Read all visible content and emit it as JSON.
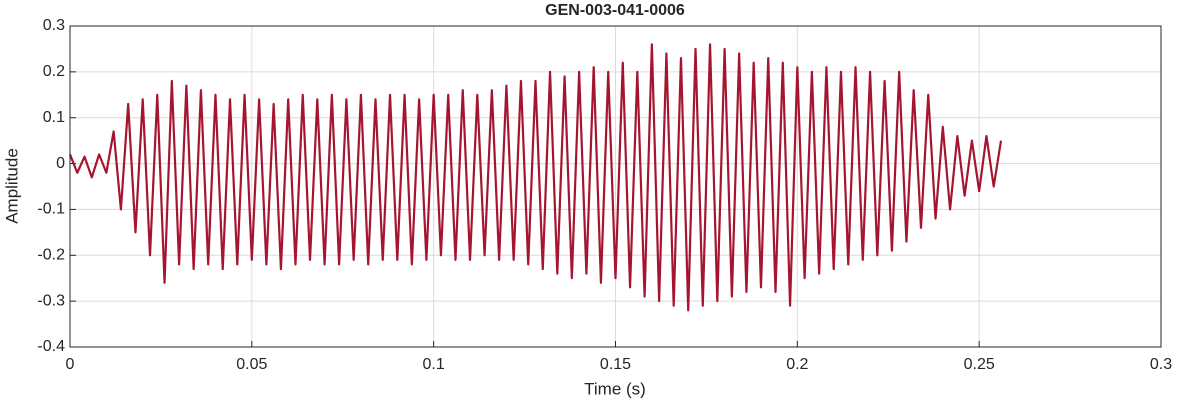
{
  "chart_data": {
    "type": "line",
    "title": "GEN-003-041-0006",
    "xlabel": "Time (s)",
    "ylabel": "Amplitude",
    "x": [
      0,
      0.002,
      0.004,
      0.006,
      0.008,
      0.01,
      0.012,
      0.014,
      0.016,
      0.018,
      0.02,
      0.022,
      0.024,
      0.026,
      0.028,
      0.03,
      0.032,
      0.034,
      0.036,
      0.038,
      0.04,
      0.042,
      0.044,
      0.046,
      0.048,
      0.05,
      0.052,
      0.054,
      0.056,
      0.058,
      0.06,
      0.062,
      0.064,
      0.066,
      0.068,
      0.07,
      0.072,
      0.074,
      0.076,
      0.078,
      0.08,
      0.082,
      0.084,
      0.086,
      0.088,
      0.09,
      0.092,
      0.094,
      0.096,
      0.098,
      0.1,
      0.102,
      0.104,
      0.106,
      0.108,
      0.11,
      0.112,
      0.114,
      0.116,
      0.118,
      0.12,
      0.122,
      0.124,
      0.126,
      0.128,
      0.13,
      0.132,
      0.134,
      0.136,
      0.138,
      0.14,
      0.142,
      0.144,
      0.146,
      0.148,
      0.15,
      0.152,
      0.154,
      0.156,
      0.158,
      0.16,
      0.162,
      0.164,
      0.166,
      0.168,
      0.17,
      0.172,
      0.174,
      0.176,
      0.178,
      0.18,
      0.182,
      0.184,
      0.186,
      0.188,
      0.19,
      0.192,
      0.194,
      0.196,
      0.198,
      0.2,
      0.202,
      0.204,
      0.206,
      0.208,
      0.21,
      0.212,
      0.214,
      0.216,
      0.218,
      0.22,
      0.222,
      0.224,
      0.226,
      0.228,
      0.23,
      0.232,
      0.234,
      0.236,
      0.238,
      0.24,
      0.242,
      0.244,
      0.246,
      0.248,
      0.25,
      0.252,
      0.254,
      0.256
    ],
    "series": [
      {
        "name": "Amplitude",
        "color": "#a5152f",
        "values": [
          0.02,
          -0.02,
          0.015,
          -0.03,
          0.02,
          -0.02,
          0.07,
          -0.1,
          0.13,
          -0.15,
          0.14,
          -0.2,
          0.15,
          -0.26,
          0.18,
          -0.22,
          0.17,
          -0.23,
          0.16,
          -0.22,
          0.15,
          -0.23,
          0.14,
          -0.22,
          0.15,
          -0.21,
          0.14,
          -0.22,
          0.13,
          -0.23,
          0.14,
          -0.22,
          0.15,
          -0.21,
          0.14,
          -0.22,
          0.15,
          -0.22,
          0.14,
          -0.21,
          0.15,
          -0.22,
          0.14,
          -0.21,
          0.15,
          -0.21,
          0.15,
          -0.22,
          0.14,
          -0.21,
          0.15,
          -0.2,
          0.15,
          -0.21,
          0.16,
          -0.21,
          0.15,
          -0.2,
          0.16,
          -0.21,
          0.17,
          -0.21,
          0.18,
          -0.22,
          0.18,
          -0.23,
          0.2,
          -0.24,
          0.19,
          -0.25,
          0.2,
          -0.24,
          0.21,
          -0.26,
          0.2,
          -0.25,
          0.22,
          -0.27,
          0.2,
          -0.29,
          0.26,
          -0.3,
          0.24,
          -0.31,
          0.23,
          -0.32,
          0.25,
          -0.31,
          0.26,
          -0.3,
          0.25,
          -0.29,
          0.24,
          -0.28,
          0.22,
          -0.27,
          0.23,
          -0.28,
          0.22,
          -0.31,
          0.21,
          -0.25,
          0.2,
          -0.24,
          0.21,
          -0.23,
          0.2,
          -0.22,
          0.21,
          -0.21,
          0.2,
          -0.2,
          0.18,
          -0.19,
          0.2,
          -0.17,
          0.16,
          -0.14,
          0.15,
          -0.12,
          0.08,
          -0.1,
          0.06,
          -0.07,
          0.05,
          -0.06,
          0.06,
          -0.05,
          0.05
        ]
      }
    ],
    "xlim": [
      0,
      0.3
    ],
    "xticks": [
      0,
      0.05,
      0.1,
      0.15,
      0.2,
      0.25,
      0.3
    ],
    "ylim": [
      -0.4,
      0.3
    ],
    "yticks": [
      -0.4,
      -0.3,
      -0.2,
      -0.1,
      0,
      0.1,
      0.2,
      0.3
    ],
    "grid": true
  }
}
